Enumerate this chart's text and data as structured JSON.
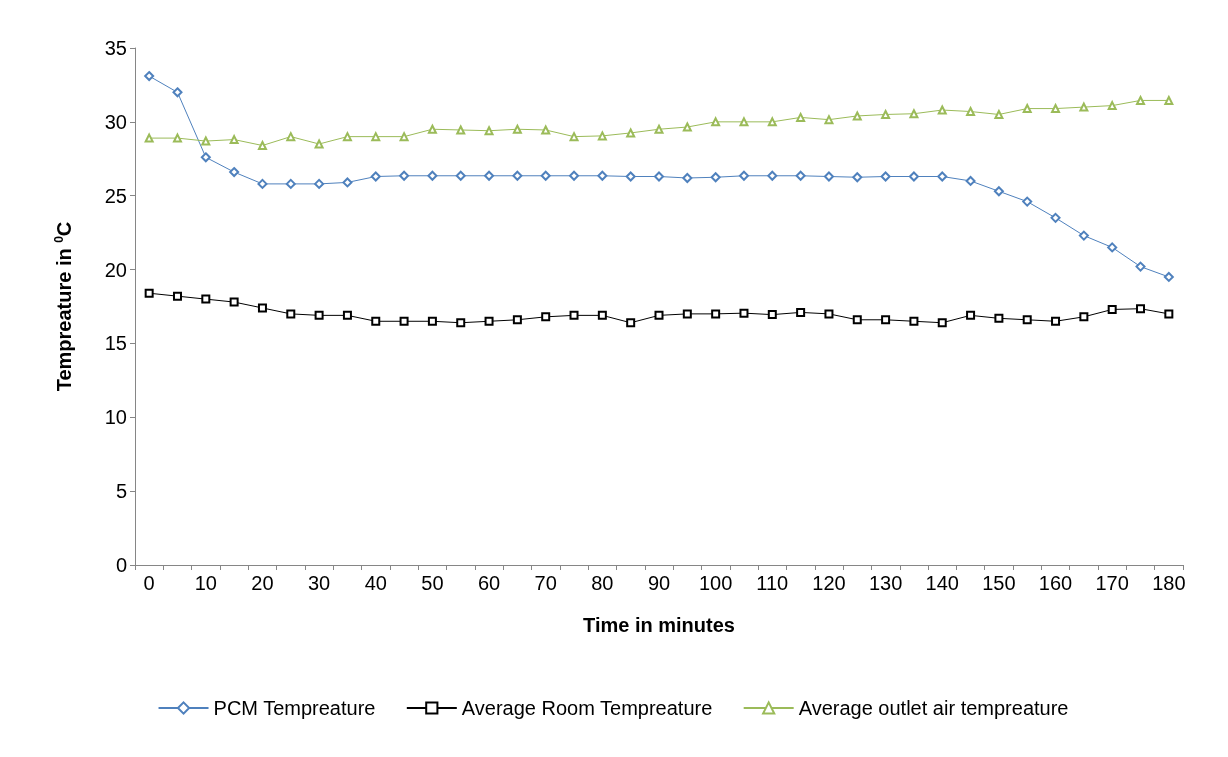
{
  "chart_data": {
    "type": "line",
    "xlabel": "Time in minutes",
    "ylabel": "Tempreature in $^{0}$C",
    "categories": [
      "0",
      null,
      "10",
      null,
      "20",
      null,
      "30",
      null,
      "40",
      null,
      "50",
      null,
      "60",
      null,
      "70",
      null,
      "80",
      null,
      "90",
      null,
      "100",
      null,
      "110",
      null,
      "120",
      null,
      "130",
      null,
      "140",
      null,
      "150",
      null,
      "160",
      null,
      "170",
      null,
      "180"
    ],
    "series": [
      {
        "name": "PCM Tempreature",
        "color": "#4f81bd",
        "marker": "diamond",
        "values": [
          33.1,
          32.0,
          27.6,
          26.6,
          25.8,
          25.8,
          25.8,
          25.9,
          26.3,
          26.35,
          26.35,
          26.35,
          26.35,
          26.35,
          26.35,
          26.35,
          26.35,
          26.3,
          26.3,
          26.2,
          26.25,
          26.35,
          26.35,
          26.35,
          26.3,
          26.25,
          26.3,
          26.3,
          26.3,
          26.0,
          25.3,
          24.6,
          23.5,
          22.3,
          21.5,
          20.2,
          19.5
        ]
      },
      {
        "name": "Average Room Tempreature",
        "color": "#000000",
        "marker": "square",
        "values": [
          18.4,
          18.2,
          18.0,
          17.8,
          17.4,
          17.0,
          16.9,
          16.9,
          16.5,
          16.5,
          16.5,
          16.4,
          16.5,
          16.6,
          16.8,
          16.9,
          16.9,
          16.4,
          16.9,
          17.0,
          17.0,
          17.05,
          16.95,
          17.1,
          17.0,
          16.6,
          16.6,
          16.5,
          16.4,
          16.9,
          16.7,
          16.6,
          16.5,
          16.8,
          17.3,
          17.35,
          17.0
        ]
      },
      {
        "name": "Average outlet air tempreature",
        "color": "#9bbb59",
        "marker": "triangle",
        "values": [
          28.9,
          28.9,
          28.7,
          28.8,
          28.4,
          29.0,
          28.5,
          29.0,
          29.0,
          29.0,
          29.5,
          29.45,
          29.4,
          29.5,
          29.45,
          29.0,
          29.05,
          29.25,
          29.5,
          29.65,
          30.0,
          30.0,
          30.0,
          30.3,
          30.15,
          30.4,
          30.5,
          30.55,
          30.8,
          30.7,
          30.5,
          30.9,
          30.9,
          31.0,
          31.1,
          31.45,
          31.45
        ]
      }
    ],
    "ylim": [
      0,
      35
    ],
    "yticks": [
      0,
      5,
      10,
      15,
      20,
      25,
      30,
      35
    ],
    "grid": false,
    "legend": "bottom"
  }
}
